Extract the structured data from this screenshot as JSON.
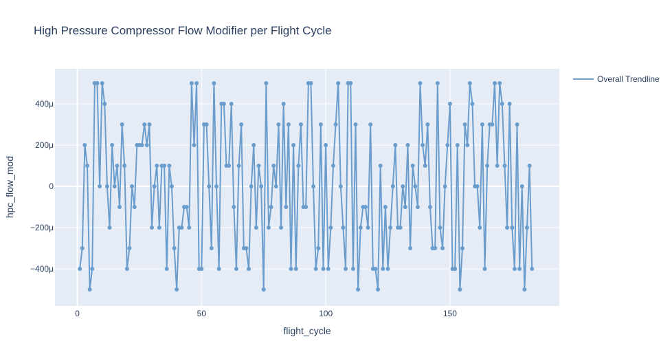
{
  "chart_data": {
    "type": "line",
    "title": "High Pressure Compressor Flow Modifier per Flight Cycle",
    "xlabel": "flight_cycle",
    "ylabel": "hpc_flow_mod",
    "xlim": [
      -9,
      194
    ],
    "ylim": [
      -0.00058,
      0.00057
    ],
    "x_ticks": [
      0,
      50,
      100,
      150
    ],
    "y_ticks": [
      {
        "value": -0.0004,
        "label": "−400μ"
      },
      {
        "value": -0.0002,
        "label": "−200μ"
      },
      {
        "value": 0,
        "label": "0"
      },
      {
        "value": 0.0002,
        "label": "200μ"
      },
      {
        "value": 0.0004,
        "label": "400μ"
      }
    ],
    "grid": true,
    "legend": "top-right",
    "series": [
      {
        "name": "Overall Trendline",
        "color": "#6a9ccc",
        "mode": "lines+markers",
        "x_start": 1,
        "x_step": 1,
        "y": [
          -0.0004,
          -0.0003,
          0.0002,
          0.0001,
          -0.0005,
          -0.0004,
          0.0005,
          0.0005,
          0,
          0.0005,
          0.0004,
          0,
          -0.0002,
          0.0002,
          0,
          0.0001,
          -0.0001,
          0.0003,
          0.0001,
          -0.0004,
          -0.0003,
          0,
          -0.0001,
          0.0002,
          0.0002,
          0.0002,
          0.0003,
          0.0002,
          0.0003,
          -0.0002,
          0,
          0.0001,
          -0.0002,
          0.0001,
          0.0001,
          -0.0004,
          0.0001,
          0,
          -0.0003,
          -0.0005,
          -0.0002,
          -0.0002,
          -0.0001,
          -0.0001,
          -0.0002,
          0.0005,
          0.0002,
          0.0005,
          -0.0004,
          -0.0004,
          0.0003,
          0.0003,
          0,
          -0.0003,
          0.0005,
          0,
          -0.0004,
          0.0004,
          0.0004,
          0.0001,
          0.0001,
          0.0004,
          -0.0001,
          -0.0004,
          0.0001,
          0.0003,
          -0.0003,
          -0.0003,
          -0.0004,
          0,
          0.0002,
          -0.0002,
          0.0001,
          0,
          -0.0005,
          0.0005,
          -0.0002,
          -0.0001,
          0.0001,
          0,
          0.0003,
          -0.0002,
          0.0004,
          -0.0001,
          0.0003,
          -0.0004,
          0.0002,
          -0.0004,
          0.0001,
          0.0003,
          -0.0001,
          -0.0001,
          0.0005,
          0.0005,
          0,
          -0.0004,
          -0.0003,
          0.0003,
          -0.0004,
          0.0002,
          -0.0004,
          -0.0002,
          0.0001,
          0.0003,
          0.0005,
          0,
          -0.0002,
          -0.0004,
          0.0005,
          0.0005,
          -0.0004,
          0.0003,
          -0.0005,
          -0.0002,
          -0.0001,
          -0.0001,
          -0.0002,
          0.0003,
          -0.0004,
          -0.0004,
          -0.0005,
          0.0001,
          -0.0004,
          -0.0001,
          -0.0004,
          -0.0002,
          0,
          0.0002,
          -0.0002,
          -0.0002,
          0,
          -0.0001,
          0.0002,
          -0.0003,
          0.0001,
          0,
          -0.0001,
          0.0005,
          0.0002,
          0.0001,
          0.0003,
          -0.0001,
          -0.0003,
          -0.0003,
          0.0005,
          -0.0002,
          -0.0003,
          0,
          0.0002,
          0.0004,
          -0.0004,
          -0.0004,
          0.0002,
          -0.0005,
          -0.0003,
          0.0003,
          0.0002,
          0.0005,
          0.0004,
          0,
          0,
          -0.0002,
          0.0003,
          -0.0004,
          0.0001,
          0.0003,
          0.0003,
          0.0005,
          0.0001,
          0.0005,
          0.0004,
          0.0001,
          -0.0002,
          0.0004,
          -0.0002,
          -0.0004,
          0.0003,
          -0.0004,
          0,
          -0.0005,
          -0.0002,
          0.0001,
          -0.0004
        ]
      }
    ]
  }
}
